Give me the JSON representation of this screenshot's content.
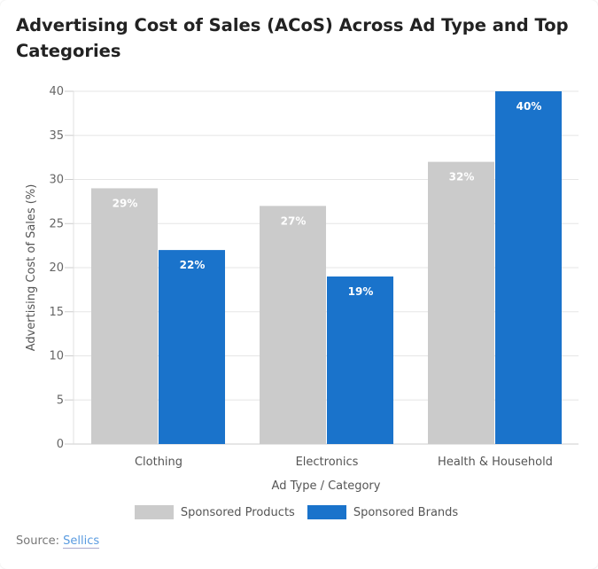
{
  "title": "Advertising Cost of Sales (ACoS) Across Ad Type and Top Categories",
  "chart_data": {
    "type": "bar",
    "title": "Advertising Cost of Sales (ACoS) Across Ad Type and Top Categories",
    "xlabel": "Ad Type / Category",
    "ylabel": "Advertising Cost of Sales (%)",
    "ylim": [
      0,
      40
    ],
    "yticks": [
      0,
      5,
      10,
      15,
      20,
      25,
      30,
      35,
      40
    ],
    "grid": true,
    "legend_placement": "bottom",
    "categories": [
      "Clothing",
      "Electronics",
      "Health & Household"
    ],
    "series": [
      {
        "name": "Sponsored Products",
        "values": [
          29,
          27,
          32
        ],
        "labels": [
          "29%",
          "27%",
          "32%"
        ],
        "color": "#cbcbcb"
      },
      {
        "name": "Sponsored Brands",
        "values": [
          22,
          19,
          40
        ],
        "labels": [
          "22%",
          "19%",
          "40%"
        ],
        "color": "#1a73cb"
      }
    ]
  },
  "source": {
    "label": "Source:",
    "link": "Sellics"
  }
}
